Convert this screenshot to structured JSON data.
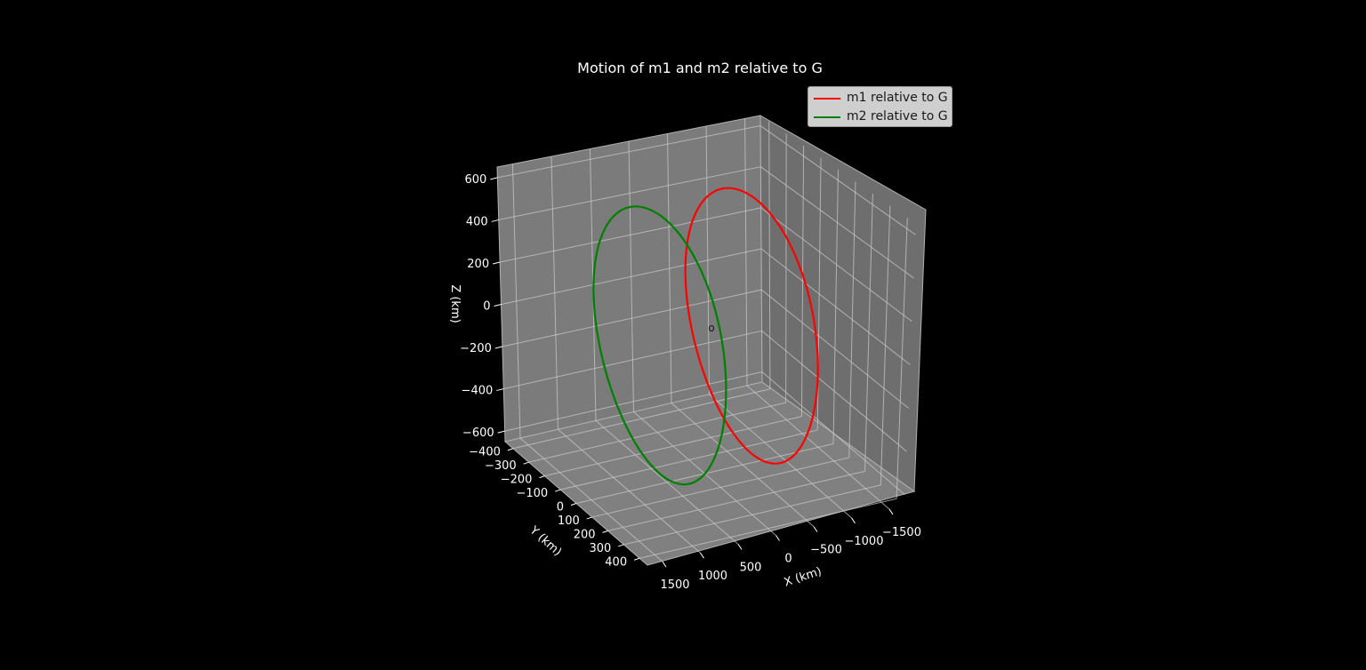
{
  "chart_data": {
    "type": "line",
    "projection": "3d",
    "title": "Motion of m1 and m2 relative to G",
    "xlabel": "X (km)",
    "ylabel": "Y (km)",
    "zlabel": "Z (km)",
    "xticks": [
      "1500",
      "1000",
      "500",
      "0",
      "−500",
      "−1000",
      "−1500"
    ],
    "yticks": [
      "−400",
      "−300",
      "−200",
      "−100",
      "0",
      "100",
      "200",
      "300",
      "400"
    ],
    "zticks": [
      "600",
      "400",
      "200",
      "0",
      "−200",
      "−400",
      "−600"
    ],
    "xlim": [
      -1700,
      1700
    ],
    "ylim": [
      -450,
      450
    ],
    "zlim": [
      -650,
      650
    ],
    "grid": true,
    "legend_position": "top-right",
    "center_marker": "o",
    "series": [
      {
        "name": "m1 relative to G",
        "color": "#ff0000",
        "ellipse": {
          "center_x": -600,
          "center_y": 0,
          "center_z": 0,
          "radius_y": 400,
          "radius_z": 600
        }
      },
      {
        "name": "m2 relative to G",
        "color": "#008000",
        "ellipse": {
          "center_x": 600,
          "center_y": 0,
          "center_z": 0,
          "radius_y": 400,
          "radius_z": 600
        }
      }
    ]
  }
}
